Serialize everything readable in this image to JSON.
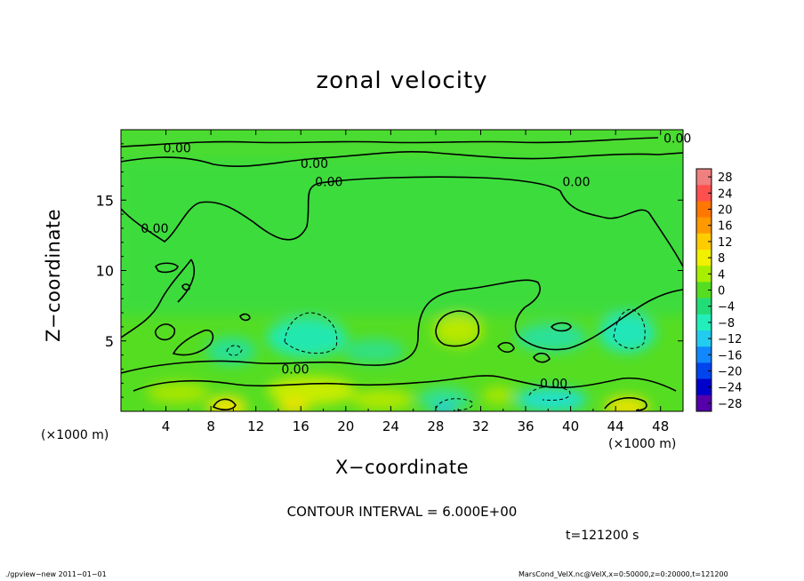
{
  "title": "zonal velocity",
  "x_axis_label": "X−coordinate",
  "y_axis_label": "Z−coordinate",
  "x_unit_left": "(×1000 m)",
  "x_unit_right": "(×1000 m)",
  "contour_interval_text": "CONTOUR INTERVAL = 6.000E+00",
  "time_text": "t=121200 s",
  "footer_left": "./gpview−new 2011−01−01",
  "footer_right": "MarsCond_VelX.nc@VelX,x=0:50000,z=0:20000,t=121200",
  "chart_data": {
    "type": "heatmap",
    "title": "zonal velocity",
    "xlabel": "X−coordinate",
    "ylabel": "Z−coordinate",
    "xlim": [
      0,
      50
    ],
    "ylim": [
      0,
      20
    ],
    "x_ticks": [
      4,
      8,
      12,
      16,
      20,
      24,
      28,
      32,
      36,
      40,
      44,
      48
    ],
    "y_ticks": [
      5,
      10,
      15
    ],
    "colorbar": {
      "labels": [
        "28",
        "24",
        "20",
        "16",
        "12",
        "8",
        "4",
        "0",
        "−4",
        "−8",
        "−12",
        "−16",
        "−20",
        "−24",
        "−28"
      ],
      "colors": [
        "#f08080",
        "#ff5050",
        "#ff7700",
        "#ff9900",
        "#ffcc00",
        "#f0f000",
        "#a8ee00",
        "#55dd22",
        "#22dd77",
        "#22eebb",
        "#22ccee",
        "#1188ff",
        "#0044ee",
        "#0000cc",
        "#5500aa"
      ]
    },
    "contour_labels": [
      "0.00",
      "0.00",
      "0.00",
      "0.00",
      "0.00",
      "0.00",
      "0.00",
      "0.00"
    ],
    "contour_interval": 6.0,
    "time_s": 121200
  }
}
